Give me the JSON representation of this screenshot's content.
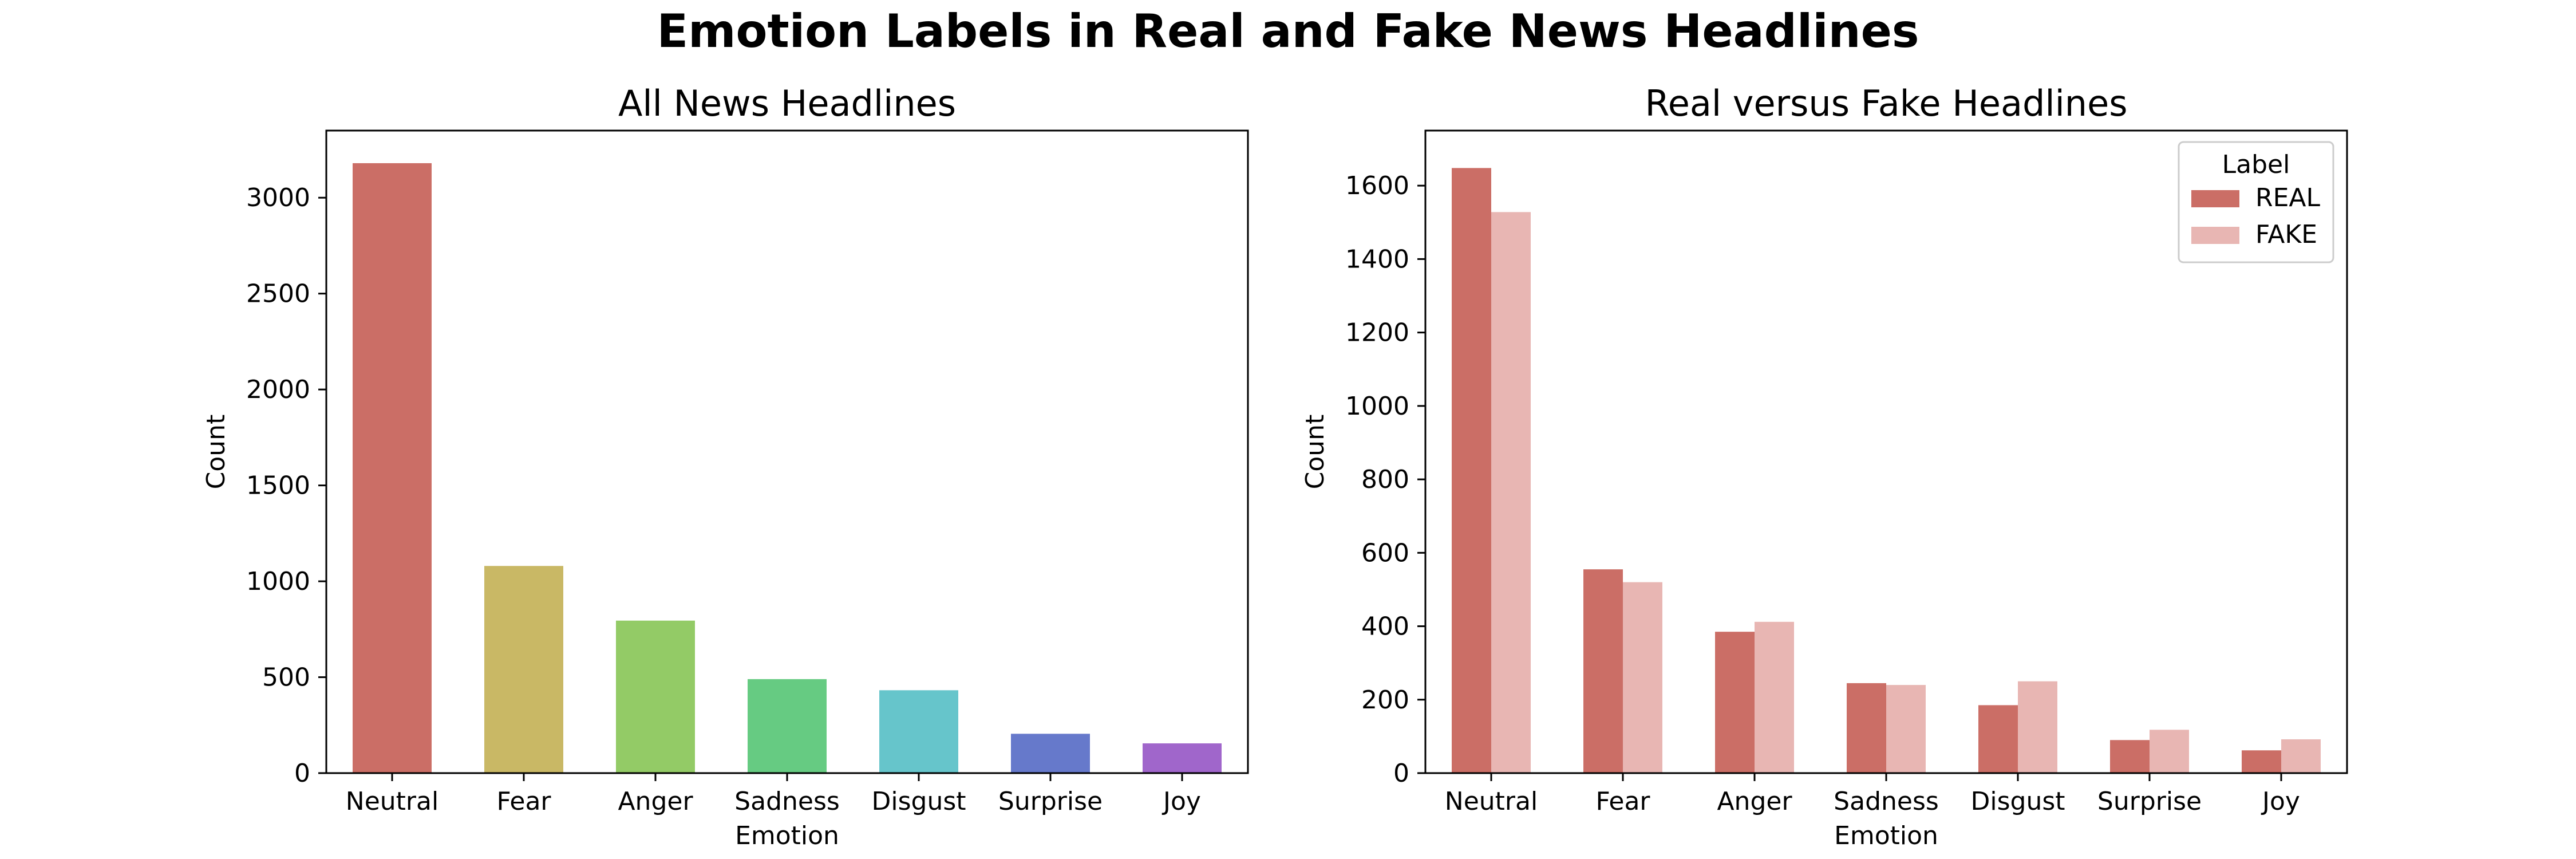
{
  "figure": {
    "title": "Emotion Labels in Real and Fake News Headlines"
  },
  "chart_data": [
    {
      "type": "bar",
      "title": "All News Headlines",
      "xlabel": "Emotion",
      "ylabel": "Count",
      "categories": [
        "Neutral",
        "Fear",
        "Anger",
        "Sadness",
        "Disgust",
        "Surprise",
        "Joy"
      ],
      "values": [
        3180,
        1080,
        795,
        490,
        432,
        205,
        155
      ],
      "colors": [
        "#cb6e66",
        "#c9b865",
        "#93cb66",
        "#66cb82",
        "#66c5cb",
        "#6679cb",
        "#a066cb"
      ],
      "ylim": [
        0,
        3350
      ],
      "yticks": [
        0,
        500,
        1000,
        1500,
        2000,
        2500,
        3000
      ],
      "ytick_labels": [
        "0",
        "500",
        "1000",
        "1500",
        "2000",
        "2500",
        "3000"
      ],
      "grid": false
    },
    {
      "type": "bar",
      "title": "Real versus Fake Headlines",
      "xlabel": "Emotion",
      "ylabel": "Count",
      "categories": [
        "Neutral",
        "Fear",
        "Anger",
        "Sadness",
        "Disgust",
        "Surprise",
        "Joy"
      ],
      "series": [
        {
          "name": "REAL",
          "color": "#cb6e66",
          "values": [
            1648,
            555,
            385,
            245,
            185,
            90,
            62
          ]
        },
        {
          "name": "FAKE",
          "color": "#e8b6b3",
          "values": [
            1528,
            520,
            412,
            240,
            250,
            118,
            92
          ]
        }
      ],
      "ylim": [
        0,
        1750
      ],
      "yticks": [
        0,
        200,
        400,
        600,
        800,
        1000,
        1200,
        1400,
        1600
      ],
      "ytick_labels": [
        "0",
        "200",
        "400",
        "600",
        "800",
        "1000",
        "1200",
        "1400",
        "1600"
      ],
      "legend": {
        "title": "Label",
        "placement": "top-right"
      },
      "grid": false
    }
  ]
}
